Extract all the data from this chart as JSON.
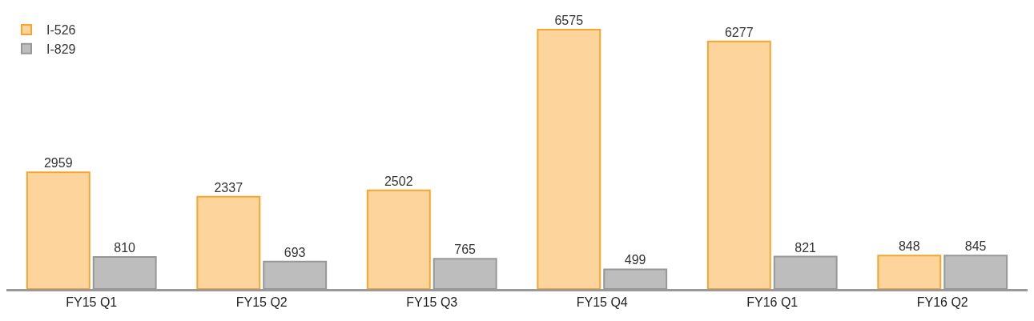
{
  "chart_data": {
    "type": "bar",
    "categories": [
      "FY15 Q1",
      "FY15 Q2",
      "FY15 Q3",
      "FY15 Q4",
      "FY16 Q1",
      "FY16 Q2"
    ],
    "series": [
      {
        "name": "I-526",
        "color": "#fdd59c",
        "values": [
          2959,
          2337,
          2502,
          6575,
          6277,
          848
        ]
      },
      {
        "name": "I-829",
        "color": "#bdbdbd",
        "values": [
          810,
          693,
          765,
          499,
          821,
          845
        ]
      }
    ],
    "data_labels": true,
    "legend": "top left",
    "grid": false,
    "tick_labels": "x"
  }
}
